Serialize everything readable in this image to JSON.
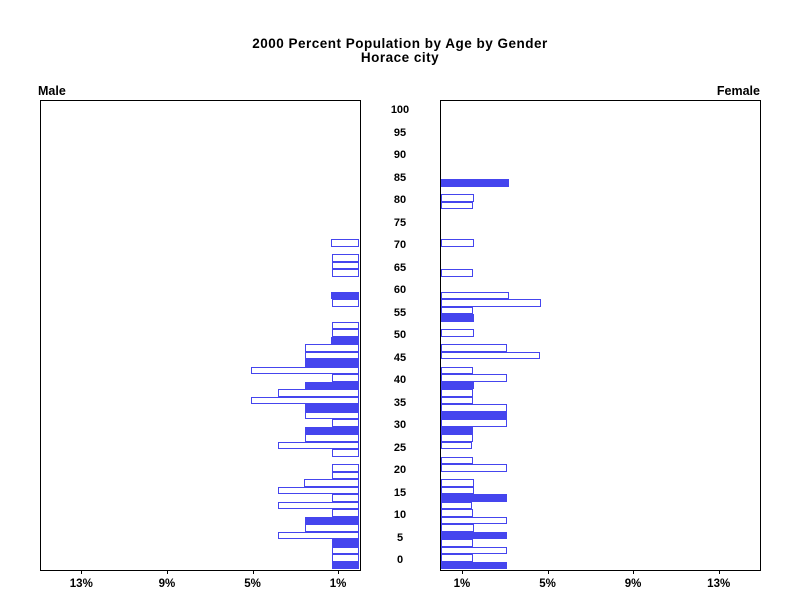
{
  "title": {
    "line1": "2000 Percent Population by Age by Gender",
    "line2": "Horace city"
  },
  "panels": {
    "male_label": "Male",
    "female_label": "Female"
  },
  "colors": {
    "bar_blue": "#4545ee",
    "axis_black": "#000000",
    "background": "#ffffff"
  },
  "chart_data": {
    "type": "bar",
    "subtype": "population-pyramid",
    "title": "2000 Percent Population by Age by Gender",
    "subtitle": "Horace city",
    "unit": "percent of population",
    "legend": "filled bars mark labeled 5-year ages; open bars are intermediate age values",
    "pct_axis": {
      "ticks": [
        1,
        5,
        9,
        13
      ],
      "tick_suffix": "%",
      "max": 15,
      "grid": false
    },
    "age_axis": {
      "min": 0,
      "max": 100,
      "step": 5
    },
    "male": [
      {
        "slot": 0,
        "age": 0,
        "pct": 1.3,
        "filled": true
      },
      {
        "slot": 1,
        "age": 1.7,
        "pct": 1.3,
        "filled": false
      },
      {
        "slot": 2,
        "age": 3.3,
        "pct": 1.3,
        "filled": false
      },
      {
        "slot": 3,
        "age": 5,
        "pct": 1.3,
        "filled": true
      },
      {
        "slot": 4,
        "age": 6.7,
        "pct": 3.8,
        "filled": false
      },
      {
        "slot": 5,
        "age": 8.3,
        "pct": 2.57,
        "filled": false
      },
      {
        "slot": 6,
        "age": 10,
        "pct": 2.57,
        "filled": true
      },
      {
        "slot": 7,
        "age": 11.7,
        "pct": 1.3,
        "filled": false
      },
      {
        "slot": 8,
        "age": 13.3,
        "pct": 3.8,
        "filled": false
      },
      {
        "slot": 9,
        "age": 15,
        "pct": 1.3,
        "filled": false
      },
      {
        "slot": 10,
        "age": 16.7,
        "pct": 3.8,
        "filled": false
      },
      {
        "slot": 11,
        "age": 18.3,
        "pct": 2.6,
        "filled": false
      },
      {
        "slot": 12,
        "age": 20,
        "pct": 1.3,
        "filled": false
      },
      {
        "slot": 13,
        "age": 21.7,
        "pct": 1.3,
        "filled": false
      },
      {
        "slot": 15,
        "age": 25,
        "pct": 1.3,
        "filled": false
      },
      {
        "slot": 16,
        "age": 26.7,
        "pct": 3.8,
        "filled": false
      },
      {
        "slot": 17,
        "age": 28.3,
        "pct": 2.57,
        "filled": false
      },
      {
        "slot": 18,
        "age": 30,
        "pct": 2.57,
        "filled": true
      },
      {
        "slot": 19,
        "age": 31.7,
        "pct": 1.3,
        "filled": false
      },
      {
        "slot": 20,
        "age": 33.3,
        "pct": 2.57,
        "filled": false
      },
      {
        "slot": 21,
        "age": 35,
        "pct": 2.57,
        "filled": true
      },
      {
        "slot": 22,
        "age": 36.7,
        "pct": 5.06,
        "filled": false
      },
      {
        "slot": 23,
        "age": 38.3,
        "pct": 3.8,
        "filled": false
      },
      {
        "slot": 24,
        "age": 40,
        "pct": 2.57,
        "filled": true
      },
      {
        "slot": 25,
        "age": 41.7,
        "pct": 1.3,
        "filled": false
      },
      {
        "slot": 26,
        "age": 43.3,
        "pct": 5.06,
        "filled": false
      },
      {
        "slot": 27,
        "age": 45,
        "pct": 2.57,
        "filled": true
      },
      {
        "slot": 28,
        "age": 46.7,
        "pct": 2.57,
        "filled": false
      },
      {
        "slot": 29,
        "age": 48.3,
        "pct": 2.57,
        "filled": false
      },
      {
        "slot": 30,
        "age": 50,
        "pct": 1.34,
        "filled": true
      },
      {
        "slot": 31,
        "age": 51.7,
        "pct": 1.3,
        "filled": false
      },
      {
        "slot": 32,
        "age": 53.3,
        "pct": 1.3,
        "filled": false
      },
      {
        "slot": 35,
        "age": 58.3,
        "pct": 1.3,
        "filled": false
      },
      {
        "slot": 36,
        "age": 60,
        "pct": 1.34,
        "filled": true
      },
      {
        "slot": 39,
        "age": 65,
        "pct": 1.3,
        "filled": false
      },
      {
        "slot": 40,
        "age": 66.7,
        "pct": 1.3,
        "filled": false
      },
      {
        "slot": 41,
        "age": 68.3,
        "pct": 1.3,
        "filled": false
      },
      {
        "slot": 43,
        "age": 71.7,
        "pct": 1.34,
        "filled": false
      }
    ],
    "female": [
      {
        "slot": 0,
        "age": 0,
        "pct": 3.12,
        "filled": true
      },
      {
        "slot": 1,
        "age": 1.7,
        "pct": 1.5,
        "filled": false
      },
      {
        "slot": 2,
        "age": 3.3,
        "pct": 3.12,
        "filled": false
      },
      {
        "slot": 3,
        "age": 5,
        "pct": 1.5,
        "filled": false
      },
      {
        "slot": 4,
        "age": 6.7,
        "pct": 3.12,
        "filled": true
      },
      {
        "slot": 5,
        "age": 8.3,
        "pct": 1.55,
        "filled": false
      },
      {
        "slot": 6,
        "age": 10,
        "pct": 3.12,
        "filled": false
      },
      {
        "slot": 7,
        "age": 11.7,
        "pct": 1.5,
        "filled": false
      },
      {
        "slot": 8,
        "age": 13.3,
        "pct": 1.47,
        "filled": false
      },
      {
        "slot": 9,
        "age": 15,
        "pct": 3.12,
        "filled": true
      },
      {
        "slot": 10,
        "age": 16.7,
        "pct": 1.55,
        "filled": false
      },
      {
        "slot": 11,
        "age": 18.3,
        "pct": 1.55,
        "filled": false
      },
      {
        "slot": 13,
        "age": 21.7,
        "pct": 3.12,
        "filled": false
      },
      {
        "slot": 14,
        "age": 23.3,
        "pct": 1.5,
        "filled": false
      },
      {
        "slot": 16,
        "age": 26.7,
        "pct": 1.47,
        "filled": false
      },
      {
        "slot": 17,
        "age": 28.3,
        "pct": 1.5,
        "filled": false
      },
      {
        "slot": 18,
        "age": 30,
        "pct": 1.53,
        "filled": true
      },
      {
        "slot": 19,
        "age": 31.7,
        "pct": 3.12,
        "filled": false
      },
      {
        "slot": 20,
        "age": 33.3,
        "pct": 3.12,
        "filled": true
      },
      {
        "slot": 21,
        "age": 35,
        "pct": 3.12,
        "filled": false
      },
      {
        "slot": 22,
        "age": 36.7,
        "pct": 1.5,
        "filled": false
      },
      {
        "slot": 23,
        "age": 38.3,
        "pct": 1.5,
        "filled": false
      },
      {
        "slot": 24,
        "age": 40,
        "pct": 1.55,
        "filled": true
      },
      {
        "slot": 25,
        "age": 41.7,
        "pct": 3.12,
        "filled": false
      },
      {
        "slot": 26,
        "age": 43.3,
        "pct": 1.5,
        "filled": false
      },
      {
        "slot": 28,
        "age": 46.7,
        "pct": 4.67,
        "filled": false
      },
      {
        "slot": 29,
        "age": 48.3,
        "pct": 3.12,
        "filled": false
      },
      {
        "slot": 31,
        "age": 51.7,
        "pct": 1.55,
        "filled": false
      },
      {
        "slot": 33,
        "age": 55,
        "pct": 1.55,
        "filled": true
      },
      {
        "slot": 34,
        "age": 56.7,
        "pct": 1.5,
        "filled": false
      },
      {
        "slot": 35,
        "age": 58.3,
        "pct": 4.69,
        "filled": false
      },
      {
        "slot": 36,
        "age": 60,
        "pct": 3.18,
        "filled": false
      },
      {
        "slot": 39,
        "age": 65,
        "pct": 1.53,
        "filled": false
      },
      {
        "slot": 43,
        "age": 71.7,
        "pct": 1.55,
        "filled": false
      },
      {
        "slot": 48,
        "age": 80,
        "pct": 1.54,
        "filled": false
      },
      {
        "slot": 49,
        "age": 81.7,
        "pct": 1.57,
        "filled": false
      },
      {
        "slot": 51,
        "age": 85,
        "pct": 3.21,
        "filled": true
      }
    ]
  }
}
